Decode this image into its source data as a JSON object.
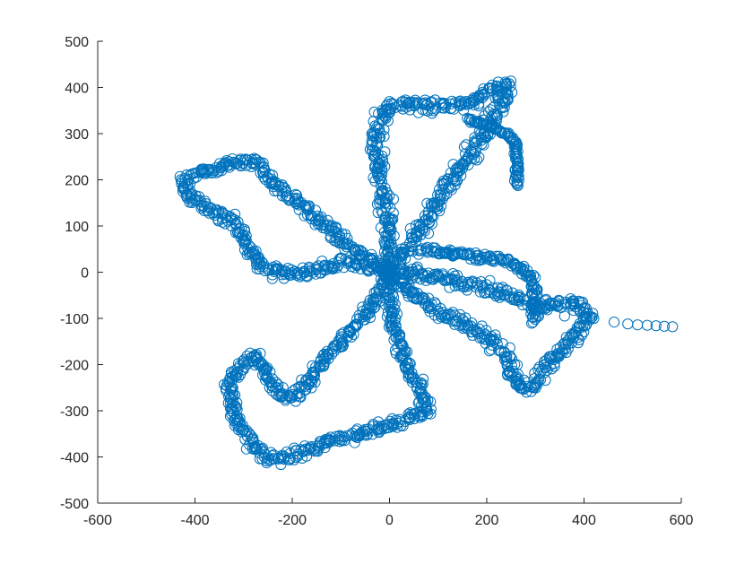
{
  "chart_data": {
    "type": "scatter",
    "title": "",
    "xlabel": "",
    "ylabel": "",
    "xlim": [
      -600,
      600
    ],
    "ylim": [
      -500,
      500
    ],
    "xticks": [
      -600,
      -400,
      -200,
      0,
      200,
      400,
      600
    ],
    "yticks": [
      -500,
      -400,
      -300,
      -200,
      -100,
      0,
      100,
      200,
      300,
      400,
      500
    ],
    "grid": false,
    "legend": "none",
    "marker": "circle-open",
    "series": [
      {
        "color": "#0072BD",
        "arms": [
          {
            "arm": "upper-right",
            "path": [
              [
                0,
                0
              ],
              [
                -5,
                120
              ],
              [
                -25,
                240
              ],
              [
                -30,
                300
              ],
              [
                -10,
                355
              ],
              [
                40,
                365
              ],
              [
                100,
                360
              ],
              [
                140,
                362
              ],
              [
                170,
                368
              ],
              [
                200,
                385
              ],
              [
                230,
                405
              ],
              [
                245,
                405
              ],
              [
                230,
                370
              ],
              [
                215,
                335
              ],
              [
                190,
                290
              ],
              [
                160,
                245
              ],
              [
                120,
                190
              ],
              [
                80,
                120
              ],
              [
                40,
                60
              ],
              [
                10,
                10
              ]
            ],
            "spread": 22
          },
          {
            "arm": "upper-right-tail",
            "path": [
              [
                160,
                330
              ],
              [
                200,
                320
              ],
              [
                240,
                300
              ],
              [
                260,
                280
              ],
              [
                262,
                240
              ],
              [
                262,
                205
              ],
              [
                262,
                185
              ]
            ],
            "spread": 6
          },
          {
            "arm": "left",
            "path": [
              [
                0,
                0
              ],
              [
                -60,
                40
              ],
              [
                -120,
                90
              ],
              [
                -175,
                140
              ],
              [
                -220,
                180
              ],
              [
                -250,
                205
              ],
              [
                -270,
                235
              ],
              [
                -300,
                240
              ],
              [
                -340,
                230
              ],
              [
                -380,
                220
              ],
              [
                -420,
                200
              ],
              [
                -425,
                185
              ],
              [
                -405,
                160
              ],
              [
                -370,
                135
              ],
              [
                -320,
                110
              ],
              [
                -290,
                60
              ],
              [
                -270,
                20
              ],
              [
                -240,
                0
              ],
              [
                -190,
                -5
              ],
              [
                -140,
                10
              ],
              [
                -80,
                20
              ],
              [
                -30,
                10
              ],
              [
                0,
                0
              ]
            ],
            "spread": 18
          },
          {
            "arm": "lower-left",
            "path": [
              [
                0,
                0
              ],
              [
                -30,
                -60
              ],
              [
                -70,
                -110
              ],
              [
                -110,
                -160
              ],
              [
                -150,
                -215
              ],
              [
                -175,
                -250
              ],
              [
                -200,
                -275
              ],
              [
                -230,
                -265
              ],
              [
                -260,
                -210
              ],
              [
                -280,
                -180
              ],
              [
                -310,
                -200
              ],
              [
                -330,
                -250
              ],
              [
                -320,
                -310
              ],
              [
                -290,
                -360
              ],
              [
                -260,
                -395
              ],
              [
                -235,
                -405
              ],
              [
                -180,
                -390
              ],
              [
                -110,
                -365
              ],
              [
                -40,
                -345
              ],
              [
                30,
                -320
              ],
              [
                75,
                -300
              ],
              [
                80,
                -295
              ],
              [
                60,
                -250
              ],
              [
                30,
                -190
              ],
              [
                10,
                -120
              ],
              [
                0,
                -50
              ],
              [
                0,
                0
              ]
            ],
            "spread": 18
          },
          {
            "arm": "right",
            "path": [
              [
                0,
                0
              ],
              [
                60,
                -5
              ],
              [
                120,
                -15
              ],
              [
                180,
                -30
              ],
              [
                230,
                -45
              ],
              [
                270,
                -60
              ],
              [
                300,
                -75
              ],
              [
                330,
                -70
              ],
              [
                360,
                -65
              ],
              [
                395,
                -70
              ],
              [
                410,
                -90
              ],
              [
                390,
                -130
              ],
              [
                350,
                -170
              ],
              [
                320,
                -205
              ],
              [
                300,
                -240
              ],
              [
                280,
                -255
              ],
              [
                260,
                -240
              ],
              [
                240,
                -180
              ],
              [
                200,
                -140
              ],
              [
                150,
                -110
              ],
              [
                90,
                -80
              ],
              [
                40,
                -40
              ],
              [
                0,
                0
              ]
            ],
            "spread": 20
          },
          {
            "arm": "right-upper-hump",
            "path": [
              [
                60,
                50
              ],
              [
                140,
                40
              ],
              [
                200,
                30
              ],
              [
                240,
                25
              ],
              [
                270,
                10
              ],
              [
                295,
                -15
              ],
              [
                300,
                -60
              ],
              [
                295,
                -110
              ]
            ],
            "spread": 12
          },
          {
            "arm": "right-tail",
            "path": [
              [
                360,
                -95
              ],
              [
                420,
                -100
              ],
              [
                462,
                -108
              ],
              [
                490,
                -112
              ],
              [
                510,
                -114
              ],
              [
                530,
                -115
              ],
              [
                548,
                -116
              ],
              [
                565,
                -117
              ],
              [
                582,
                -118
              ]
            ],
            "spread": 2
          }
        ]
      }
    ]
  }
}
